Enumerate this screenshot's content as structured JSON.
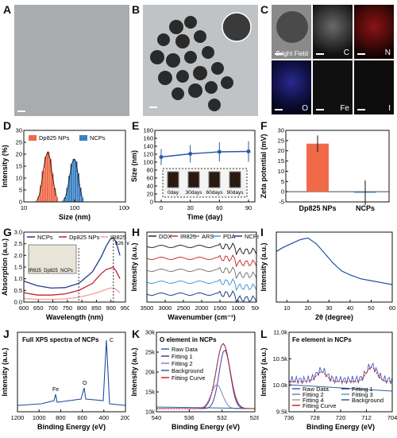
{
  "panel_labels": [
    "A",
    "B",
    "C",
    "D",
    "E",
    "F",
    "G",
    "H",
    "I",
    "J",
    "K",
    "L"
  ],
  "panelC": {
    "maps": [
      "Bright Field",
      "C",
      "N",
      "O",
      "Fe",
      "I"
    ],
    "colors": [
      "#555555",
      "#9a9a9a",
      "#b01818",
      "#2a2aa0",
      "#3a3a3a",
      "#2a2a2a"
    ]
  },
  "chart_data": [
    {
      "panel": "D",
      "type": "bar",
      "ylabel": "Intensity (%)",
      "xlabel": "Size (nm)",
      "xscale": "log",
      "xticks": [
        "10",
        "100",
        "1000"
      ],
      "yticks": [
        "0",
        "5",
        "10",
        "15",
        "20",
        "25",
        "30"
      ],
      "ylim": [
        0,
        30
      ],
      "series": [
        {
          "name": "Dp825 NPs",
          "color": "#f06a4a",
          "x": [
            18,
            20,
            22,
            24,
            27,
            30,
            33,
            36,
            40,
            44
          ],
          "values": [
            0.5,
            2.5,
            7,
            13,
            19,
            21,
            18,
            12,
            6,
            2
          ]
        },
        {
          "name": "NCPs",
          "color": "#3a7fc2",
          "x": [
            60,
            66,
            73,
            80,
            88,
            97,
            106,
            116,
            128,
            140
          ],
          "values": [
            0.5,
            2,
            6,
            11,
            16,
            18,
            17,
            12,
            6,
            2
          ]
        }
      ]
    },
    {
      "panel": "E",
      "type": "line",
      "ylabel": "Size (nm)",
      "xlabel": "Time (day)",
      "xticks": [
        "0",
        "30",
        "60",
        "90"
      ],
      "yticks": [
        "0",
        "20",
        "40",
        "60",
        "80",
        "100",
        "120",
        "140",
        "160",
        "180"
      ],
      "ylim": [
        0,
        180
      ],
      "x": [
        0,
        30,
        60,
        90
      ],
      "values": [
        113,
        121,
        126,
        127
      ],
      "errors": [
        20,
        22,
        24,
        26
      ],
      "insets": [
        "0day",
        "30days",
        "60days",
        "90days"
      ]
    },
    {
      "panel": "F",
      "type": "bar",
      "ylabel": "Zeta potential (mV)",
      "categories": [
        "Dp825 NPs",
        "NCPs"
      ],
      "values": [
        23.5,
        -0.5
      ],
      "errors": [
        4,
        6
      ],
      "yticks": [
        "-5",
        "0",
        "5",
        "10",
        "15",
        "20",
        "25",
        "30"
      ],
      "ylim": [
        -5,
        30
      ],
      "colors": [
        "#f06a4a",
        "#3a7fc2"
      ]
    },
    {
      "panel": "G",
      "type": "line",
      "ylabel": "Absorption (a.u.)",
      "xlabel": "Wavelength (nm)",
      "xticks": [
        "600",
        "650",
        "700",
        "750",
        "800",
        "850",
        "900",
        "950"
      ],
      "yticks": [
        "0.0",
        "0.5",
        "1.0",
        "1.5",
        "2.0",
        "2.5",
        "3.0"
      ],
      "ylim": [
        0,
        3
      ],
      "x": [
        600,
        650,
        700,
        750,
        800,
        850,
        880,
        900,
        915,
        925,
        935,
        950
      ],
      "series": [
        {
          "name": "NCPs",
          "color": "#1f3f8a",
          "values": [
            0.9,
            0.7,
            0.6,
            0.62,
            0.8,
            1.3,
            1.9,
            2.4,
            2.7,
            2.75,
            2.6,
            2.0
          ]
        },
        {
          "name": "Dp825 NPs",
          "color": "#c8202a",
          "values": [
            0.4,
            0.3,
            0.3,
            0.35,
            0.5,
            0.8,
            1.2,
            1.4,
            1.45,
            1.5,
            1.35,
            1.0
          ]
        },
        {
          "name": "IR825",
          "color": "#f0a0a0",
          "values": [
            0.15,
            0.12,
            0.12,
            0.14,
            0.2,
            0.35,
            0.45,
            0.55,
            0.6,
            0.6,
            0.55,
            0.4
          ]
        }
      ],
      "insets": [
        "IR825",
        "Dp825",
        "NCPs"
      ],
      "annotations": [
        "800",
        "926 nm"
      ]
    },
    {
      "panel": "H",
      "type": "line",
      "ylabel": "Intensity (a.u.)",
      "xlabel": "Wavenumber (cm⁻¹)",
      "xticks": [
        "3500",
        "3000",
        "2500",
        "2000",
        "1500",
        "1000",
        "500"
      ],
      "series": [
        {
          "name": "DOX",
          "color": "#2a2a2a"
        },
        {
          "name": "IR825",
          "color": "#d03030"
        },
        {
          "name": "ARS",
          "color": "#7a7a7a"
        },
        {
          "name": "PDA",
          "color": "#4a9ad0"
        },
        {
          "name": "NCPs",
          "color": "#1f3f8a"
        }
      ]
    },
    {
      "panel": "I",
      "type": "line",
      "ylabel": "Intensity (a.u.)",
      "xlabel": "2θ (degree)",
      "xticks": [
        "10",
        "20",
        "30",
        "40",
        "50",
        "60"
      ],
      "color": "#1f4fa0",
      "x": [
        5,
        8,
        12,
        16,
        20,
        24,
        28,
        32,
        36,
        40,
        45,
        50,
        55,
        60
      ],
      "values": [
        130,
        140,
        150,
        160,
        165,
        150,
        125,
        100,
        80,
        70,
        60,
        55,
        50,
        45
      ]
    },
    {
      "panel": "J",
      "type": "line",
      "ylabel": "Intensity (a.u.)",
      "xlabel": "Binding Energy (eV)",
      "title": "Full XPS spectra of NCPs",
      "xticks": [
        "1200",
        "1000",
        "800",
        "600",
        "400",
        "200"
      ],
      "annotations": [
        "Fe",
        "O",
        "C"
      ],
      "color": "#1f4fa0"
    },
    {
      "panel": "K",
      "type": "line",
      "ylabel": "Intensity (a.u.)",
      "xlabel": "Binding Energy (eV)",
      "title": "O element in NCPs",
      "xticks": [
        "540",
        "536",
        "532",
        "528"
      ],
      "yticks": [
        "10k",
        "15k",
        "20k",
        "25k",
        "30k"
      ],
      "series": [
        {
          "name": "Raw Data",
          "color": "#4060c0"
        },
        {
          "name": "Fitting 1",
          "color": "#4040a0"
        },
        {
          "name": "Fitting 2",
          "color": "#8080c0"
        },
        {
          "name": "Background",
          "color": "#3060a0"
        },
        {
          "name": "Fitting Curve",
          "color": "#e02020"
        }
      ]
    },
    {
      "panel": "L",
      "type": "line",
      "ylabel": "Intensity (a.u.)",
      "xlabel": "Binding Energy (eV)",
      "title": "Fe element in NCPs",
      "xticks": [
        "736",
        "728",
        "720",
        "712",
        "704"
      ],
      "yticks": [
        "9.5k",
        "10.0k",
        "10.5k",
        "11.0k"
      ],
      "series": [
        {
          "name": "Raw Data",
          "color": "#4060c0"
        },
        {
          "name": "Fitting 1",
          "color": "#2a2a80"
        },
        {
          "name": "Fitting 2",
          "color": "#7a7ab0"
        },
        {
          "name": "Fitting 3",
          "color": "#4fa0d0"
        },
        {
          "name": "Fitting 4",
          "color": "#a0a0a0"
        },
        {
          "name": "Background",
          "color": "#3060a0"
        },
        {
          "name": "Fitting Curve",
          "color": "#e02020"
        }
      ]
    }
  ]
}
